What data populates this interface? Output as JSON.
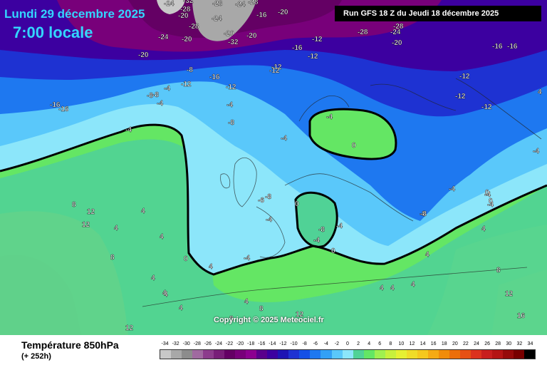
{
  "header": {
    "date": "Lundi 29 décembre 2025",
    "time": "7:00 locale",
    "run": "Run GFS 18 Z du Jeudi 18 décembre 2025"
  },
  "copyright": "Copyright © 2025 Meteociel.fr",
  "footer": {
    "parameter": "Température 850hPa",
    "lead": "(+ 252h)"
  },
  "legend": {
    "values": [
      "-34",
      "-32",
      "-30",
      "-28",
      "-26",
      "-24",
      "-22",
      "-20",
      "-18",
      "-16",
      "-14",
      "-12",
      "-10",
      "-8",
      "-6",
      "-4",
      "-2",
      "0",
      "2",
      "4",
      "6",
      "8",
      "10",
      "12",
      "14",
      "16",
      "18",
      "20",
      "22",
      "24",
      "26",
      "28",
      "30",
      "32",
      "34"
    ],
    "colors": [
      "#c8c8c8",
      "#a8a8a8",
      "#8c8c8c",
      "#a06aa0",
      "#8c3c8c",
      "#781e78",
      "#640064",
      "#78007a",
      "#8c0090",
      "#5a008c",
      "#3c00a0",
      "#1e14b4",
      "#1e32d2",
      "#1450e6",
      "#1e78f0",
      "#32a0f5",
      "#5ac8fa",
      "#8ce6fa",
      "#50d296",
      "#64e664",
      "#a0f050",
      "#c8f03c",
      "#e6f032",
      "#f0dc28",
      "#f5c81e",
      "#f5aa14",
      "#f08c0a",
      "#eb6e0a",
      "#e65014",
      "#dc321e",
      "#c81e1e",
      "#b41414",
      "#960a0a",
      "#780000",
      "#000000"
    ]
  },
  "map_labels": [
    {
      "t": "-24"
    },
    {
      "t": "-28"
    },
    {
      "t": "-32"
    },
    {
      "t": "-28"
    },
    {
      "t": "-24"
    },
    {
      "t": "-20"
    },
    {
      "t": "-16"
    },
    {
      "t": "-20"
    },
    {
      "t": "-24"
    },
    {
      "t": "-28"
    },
    {
      "t": "-24"
    },
    {
      "t": "-20"
    },
    {
      "t": "-20"
    },
    {
      "t": "-28"
    },
    {
      "t": "-32"
    },
    {
      "t": "-20"
    },
    {
      "t": "-20"
    },
    {
      "t": "-16"
    },
    {
      "t": "-12"
    },
    {
      "t": "-12"
    },
    {
      "t": "-28"
    },
    {
      "t": "-24"
    },
    {
      "t": "-20"
    },
    {
      "t": "-28"
    },
    {
      "t": "-16"
    },
    {
      "t": "-16"
    },
    {
      "t": "-16"
    },
    {
      "t": "-12"
    },
    {
      "t": "-12"
    },
    {
      "t": "-12"
    },
    {
      "t": "-12"
    },
    {
      "t": "-8"
    },
    {
      "t": "-8"
    },
    {
      "t": "-4"
    },
    {
      "t": "-16"
    },
    {
      "t": "-12"
    },
    {
      "t": "-8"
    },
    {
      "t": "-12"
    },
    {
      "t": "-16"
    },
    {
      "t": "-4"
    },
    {
      "t": "-4"
    },
    {
      "t": "-8"
    },
    {
      "t": "-12"
    },
    {
      "t": "-4"
    },
    {
      "t": "-8"
    },
    {
      "t": "-4"
    },
    {
      "t": "-4"
    },
    {
      "t": "-8"
    },
    {
      "t": "-4"
    },
    {
      "t": "0"
    },
    {
      "t": "0"
    },
    {
      "t": "-4"
    },
    {
      "t": "-8"
    },
    {
      "t": "-6"
    },
    {
      "t": "-4"
    },
    {
      "t": "0"
    },
    {
      "t": "-4"
    },
    {
      "t": "-8"
    },
    {
      "t": "-4"
    },
    {
      "t": "-4"
    },
    {
      "t": "-4"
    },
    {
      "t": "0"
    },
    {
      "t": "4"
    },
    {
      "t": "8"
    },
    {
      "t": "12"
    },
    {
      "t": "12"
    },
    {
      "t": "4"
    },
    {
      "t": "8"
    },
    {
      "t": "4"
    },
    {
      "t": "4"
    },
    {
      "t": "4"
    },
    {
      "t": "4"
    },
    {
      "t": "4"
    },
    {
      "t": "4"
    },
    {
      "t": "4"
    },
    {
      "t": "8"
    },
    {
      "t": "8"
    },
    {
      "t": "12"
    },
    {
      "t": "4"
    },
    {
      "t": "4"
    },
    {
      "t": "4"
    },
    {
      "t": "4"
    },
    {
      "t": "4"
    },
    {
      "t": "8"
    },
    {
      "t": "12"
    },
    {
      "t": "16"
    },
    {
      "t": "12"
    },
    {
      "t": "4"
    },
    {
      "t": "0"
    },
    {
      "t": "0"
    },
    {
      "t": "-4"
    }
  ]
}
